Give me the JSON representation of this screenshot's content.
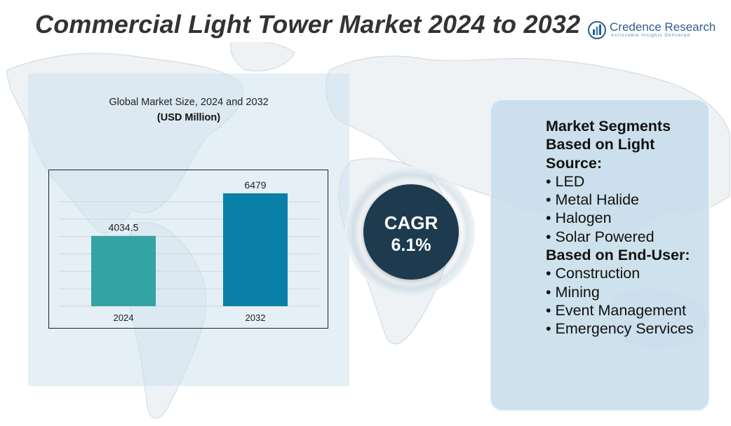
{
  "title": "Commercial Light Tower Market 2024 to 2032",
  "logo": {
    "name": "Credence Research",
    "tagline": "Actionable Insights Delivered",
    "icon": "bar-chart-globe-icon"
  },
  "chart_data": {
    "type": "bar",
    "title": "Global Market Size, 2024 and 2032",
    "unit": "(USD Million)",
    "categories": [
      "2024",
      "2032"
    ],
    "values": [
      4034.5,
      6479
    ],
    "data_labels": [
      "4034.5",
      "6479"
    ],
    "colors": [
      "#33a3a3",
      "#0a7fa8"
    ],
    "ylim": [
      0,
      7000
    ],
    "grid": true,
    "legend": "none"
  },
  "cagr": {
    "label": "CAGR",
    "value": "6.1%"
  },
  "segments": {
    "heading_light": "Market Segments Based on Light Source:",
    "light_items": [
      "• LED",
      "• Metal Halide",
      "• Halogen",
      "• Solar Powered"
    ],
    "heading_end_user": "Based on End-User:",
    "end_user_items": [
      "• Construction",
      "• Mining",
      "• Event Management",
      "• Emergency Services"
    ]
  },
  "colors": {
    "title_text": "#333333",
    "panel_bg": "#cde2ee",
    "cagr_bg": "#1d3a4e",
    "logo_text": "#2d5d8a"
  }
}
